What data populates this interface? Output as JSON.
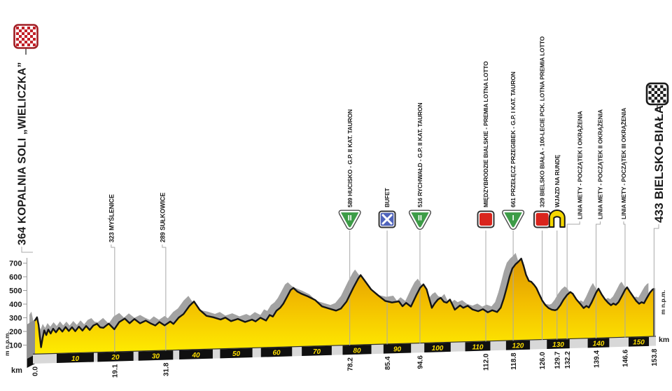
{
  "colors": {
    "profile_top": "#d89200",
    "profile_mid": "#f2bb00",
    "profile_bottom": "#ffee00",
    "profile_outline": "#151515",
    "shadow_gray": "#a3a3a3",
    "left_face_gray": "#8f8f8f",
    "band_gray": "#d8d8d8",
    "band_black": "#101010",
    "band_number_yellow": "#ffdf00",
    "leader_line_gray": "#a8a8a8",
    "text_black": "#1a1a1a",
    "climb_green": "#3d9c47",
    "bufet_blue": "#4f63bb",
    "premia_red": "#d9251d",
    "runda_yellow": "#f6d800",
    "start_flag_red": "#c22028",
    "finish_flag_black": "#1a1a1a"
  },
  "axis": {
    "altitude_unit": "m n.p.m.",
    "distance_unit": "km"
  },
  "start": {
    "label": "364 KOPALNIA SOLI „WIELICZKA”",
    "km": 0.0,
    "icon": "start-flag-checkered-red"
  },
  "finish": {
    "label": "433 BIELSKO-BIAŁA",
    "km": 153.8,
    "icon": "finish-flag-checkered-black"
  },
  "waypoints": [
    {
      "label": "323 MYŚLENICE",
      "km": 19.1,
      "icon": null
    },
    {
      "label": "289 SUŁKOWICE",
      "km": 31.8,
      "icon": null
    },
    {
      "label": "589 HUCISKO - G.P. II KAT. TAURON",
      "km": 78.2,
      "icon": "climb-category",
      "icon_text": "II"
    },
    {
      "label": "BUFET",
      "km": 85.4,
      "icon": "bufet"
    },
    {
      "label": "516 RYCHWAŁD - G.P. II KAT. TAURON",
      "km": 94.6,
      "icon": "climb-category",
      "icon_text": "II"
    },
    {
      "label": "MIĘDZYBRODZIE BIALSKIE - PREMIA LOTNA LOTTO",
      "km": 112.0,
      "icon": "premia-lotna"
    },
    {
      "label": "661 PRZEŁĘCZ PRZEGIBEK - G.P. I KAT. TAURON",
      "km": 118.8,
      "icon": "climb-category",
      "icon_text": "I"
    },
    {
      "label": "329 BIELSKO BIAŁA - 100-LECIE PCK. LOTNA PREMIA LOTTO",
      "km": 126.0,
      "icon": "premia-lotna"
    },
    {
      "label": "WJAZD NA RUNDĘ",
      "km": 129.7,
      "icon": "wjazd-na-runde"
    },
    {
      "label": "LINIA METY - POCZĄTEK I OKRĄŻENIA",
      "km": 132.2,
      "icon": null
    },
    {
      "label": "LINIA METY - POCZĄTEK II OKRĄŻENIA",
      "km": 139.4,
      "icon": null
    },
    {
      "label": "LINIA METY - POCZĄTEK III OKRĄŻENIA",
      "km": 146.6,
      "icon": null
    }
  ],
  "chart_data": {
    "type": "area",
    "title": "Stage elevation profile",
    "xlabel": "km",
    "ylabel": "m n.p.m.",
    "x_range": [
      0,
      153.8
    ],
    "y_ticks": [
      700,
      600,
      500,
      400,
      300,
      200,
      100
    ],
    "km_band_marks": [
      10,
      20,
      30,
      40,
      50,
      60,
      70,
      80,
      90,
      100,
      110,
      120,
      130,
      140,
      150
    ],
    "distance_labels": [
      "0.0",
      "19.1",
      "31.8",
      "78.2",
      "85.4",
      "94.6",
      "112.0",
      "118.8",
      "126.0",
      "129.7",
      "132.2",
      "139.4",
      "146.6",
      "153.8"
    ],
    "elevation_profile": [
      [
        0,
        250
      ],
      [
        0.5,
        272
      ],
      [
        0.9,
        215
      ],
      [
        1.2,
        130
      ],
      [
        1.5,
        52
      ],
      [
        1.9,
        120
      ],
      [
        2.3,
        175
      ],
      [
        2.8,
        140
      ],
      [
        3.3,
        180
      ],
      [
        3.9,
        150
      ],
      [
        4.5,
        185
      ],
      [
        5.2,
        158
      ],
      [
        6,
        190
      ],
      [
        6.8,
        162
      ],
      [
        7.6,
        195
      ],
      [
        8.4,
        165
      ],
      [
        9.2,
        192
      ],
      [
        10,
        162
      ],
      [
        10.9,
        195
      ],
      [
        11.8,
        165
      ],
      [
        12.7,
        198
      ],
      [
        13.6,
        168
      ],
      [
        14.5,
        200
      ],
      [
        15.4,
        212
      ],
      [
        16.2,
        185
      ],
      [
        17,
        181
      ],
      [
        18.3,
        211
      ],
      [
        19.7,
        168
      ],
      [
        20.9,
        219
      ],
      [
        22.3,
        244
      ],
      [
        23.5,
        209
      ],
      [
        24.7,
        239
      ],
      [
        26.1,
        206
      ],
      [
        27.5,
        225
      ],
      [
        28.7,
        204
      ],
      [
        29.9,
        187
      ],
      [
        30.9,
        212
      ],
      [
        32.2,
        186
      ],
      [
        33.6,
        213
      ],
      [
        34.4,
        195
      ],
      [
        35.7,
        240
      ],
      [
        36.9,
        265
      ],
      [
        38.3,
        321
      ],
      [
        39.5,
        355
      ],
      [
        40.9,
        293
      ],
      [
        42.6,
        247
      ],
      [
        44.3,
        235
      ],
      [
        46.1,
        217
      ],
      [
        47.3,
        230
      ],
      [
        48.7,
        203
      ],
      [
        50.4,
        218
      ],
      [
        52.2,
        194
      ],
      [
        53.9,
        210
      ],
      [
        54.8,
        196
      ],
      [
        56,
        222
      ],
      [
        57.4,
        200
      ],
      [
        58.3,
        240
      ],
      [
        59.1,
        228
      ],
      [
        60,
        270
      ],
      [
        60.9,
        290
      ],
      [
        61.7,
        320
      ],
      [
        62.6,
        368
      ],
      [
        63.5,
        418
      ],
      [
        64.2,
        433
      ],
      [
        65.2,
        405
      ],
      [
        66.1,
        390
      ],
      [
        67.8,
        368
      ],
      [
        69.6,
        340
      ],
      [
        71.3,
        292
      ],
      [
        73,
        275
      ],
      [
        74.8,
        258
      ],
      [
        76,
        272
      ],
      [
        77.4,
        322
      ],
      [
        79.1,
        423
      ],
      [
        80.3,
        488
      ],
      [
        80.9,
        513
      ],
      [
        81.7,
        480
      ],
      [
        83.5,
        406
      ],
      [
        85.2,
        362
      ],
      [
        87,
        319
      ],
      [
        88.7,
        306
      ],
      [
        90.4,
        313
      ],
      [
        91.3,
        276
      ],
      [
        92.2,
        300
      ],
      [
        93.4,
        272
      ],
      [
        94.8,
        358
      ],
      [
        95.7,
        408
      ],
      [
        96.5,
        432
      ],
      [
        97.3,
        395
      ],
      [
        98,
        320
      ],
      [
        98.6,
        258
      ],
      [
        99.3,
        290
      ],
      [
        100.1,
        318
      ],
      [
        100.8,
        330
      ],
      [
        101.6,
        300
      ],
      [
        102.3,
        293
      ],
      [
        103.1,
        315
      ],
      [
        104.3,
        240
      ],
      [
        105.6,
        270
      ],
      [
        106.4,
        252
      ],
      [
        107.5,
        266
      ],
      [
        108.7,
        238
      ],
      [
        110.1,
        224
      ],
      [
        111.3,
        238
      ],
      [
        112.5,
        214
      ],
      [
        113.6,
        228
      ],
      [
        114.8,
        214
      ],
      [
        115.7,
        245
      ],
      [
        116.5,
        315
      ],
      [
        117.2,
        390
      ],
      [
        117.9,
        470
      ],
      [
        118.6,
        530
      ],
      [
        119.4,
        560
      ],
      [
        120,
        575
      ],
      [
        120.8,
        600
      ],
      [
        121.4,
        545
      ],
      [
        122,
        480
      ],
      [
        122.7,
        435
      ],
      [
        123.3,
        428
      ],
      [
        124,
        405
      ],
      [
        124.6,
        380
      ],
      [
        125.2,
        340
      ],
      [
        126,
        290
      ],
      [
        126.8,
        255
      ],
      [
        127.6,
        232
      ],
      [
        128.4,
        220
      ],
      [
        129.2,
        215
      ],
      [
        129.7,
        220
      ],
      [
        130.5,
        250
      ],
      [
        131.3,
        290
      ],
      [
        132.2,
        325
      ],
      [
        133,
        345
      ],
      [
        133.6,
        332
      ],
      [
        134.5,
        290
      ],
      [
        135.5,
        255
      ],
      [
        136.3,
        225
      ],
      [
        137,
        240
      ],
      [
        137.6,
        228
      ],
      [
        138.3,
        265
      ],
      [
        139,
        310
      ],
      [
        139.4,
        335
      ],
      [
        140,
        364
      ],
      [
        140.8,
        320
      ],
      [
        141.6,
        285
      ],
      [
        142.4,
        258
      ],
      [
        143.1,
        240
      ],
      [
        143.7,
        252
      ],
      [
        144.3,
        242
      ],
      [
        145,
        262
      ],
      [
        145.8,
        305
      ],
      [
        146.6,
        350
      ],
      [
        147.1,
        368
      ],
      [
        147.9,
        330
      ],
      [
        148.7,
        295
      ],
      [
        149.4,
        265
      ],
      [
        150.1,
        245
      ],
      [
        150.7,
        256
      ],
      [
        151.3,
        248
      ],
      [
        152,
        285
      ],
      [
        152.8,
        325
      ],
      [
        153.4,
        345
      ],
      [
        153.8,
        352
      ]
    ]
  }
}
